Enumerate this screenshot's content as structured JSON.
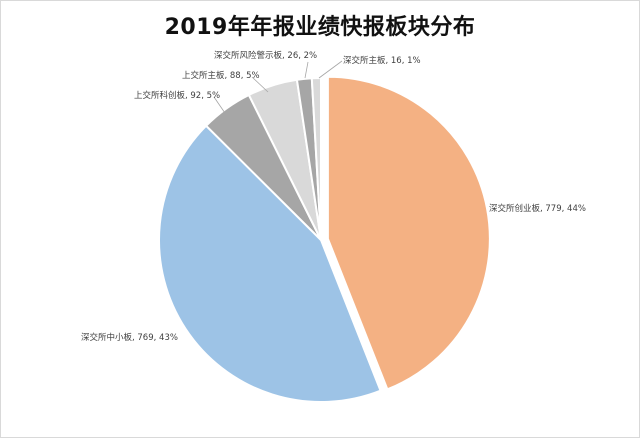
{
  "chart_data": {
    "type": "pie",
    "title": "2019年年报业绩快报板块分布",
    "slices": [
      {
        "name": "深交所创业板",
        "value": 779,
        "percent": "44%",
        "color": "#f4b183"
      },
      {
        "name": "深交所中小板",
        "value": 769,
        "percent": "43%",
        "color": "#9dc3e6"
      },
      {
        "name": "上交所科创板",
        "value": 92,
        "percent": "5%",
        "color": "#a6a6a6"
      },
      {
        "name": "上交所主板",
        "value": 88,
        "percent": "5%",
        "color": "#d9d9d9"
      },
      {
        "name": "深交所风险警示板",
        "value": 26,
        "percent": "2%",
        "color": "#a6a6a6"
      },
      {
        "name": "深交所主板",
        "value": 16,
        "percent": "1%",
        "color": "#d9d9d9"
      }
    ],
    "labels": [
      "深交所创业板, 779, 44%",
      "深交所中小板, 769, 43%",
      "上交所科创板, 92, 5%",
      "上交所主板, 88, 5%",
      "深交所风险警示板, 26, 2%",
      "深交所主板, 16, 1%"
    ],
    "legend": "none"
  }
}
